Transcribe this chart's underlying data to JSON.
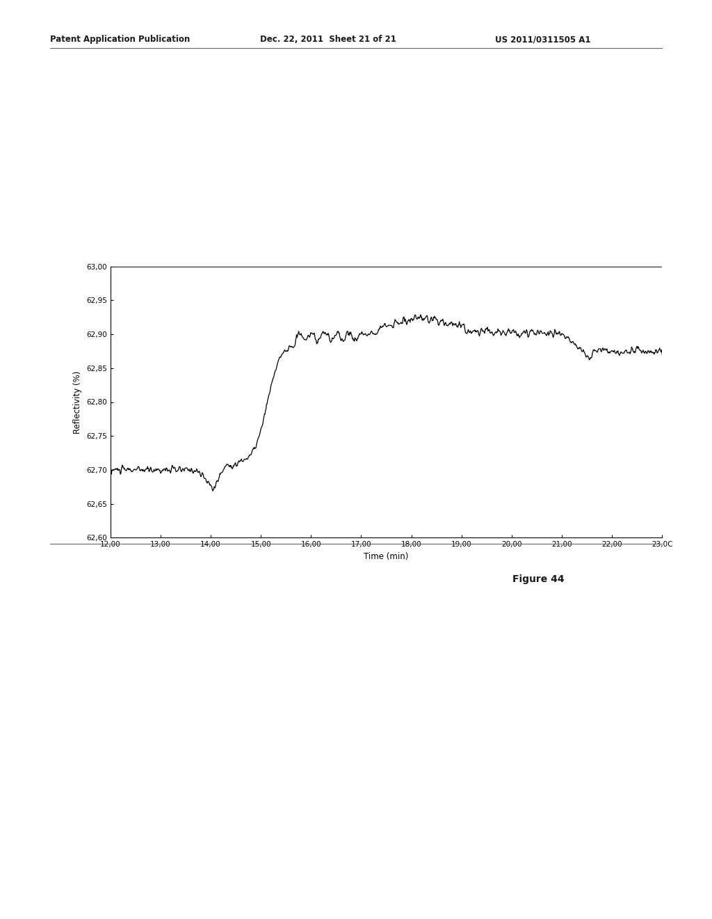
{
  "header_left": "Patent Application Publication",
  "header_center": "Dec. 22, 2011  Sheet 21 of 21",
  "header_right": "US 2011/0311505 A1",
  "figure_label": "Figure 44",
  "xlabel": "Time (min)",
  "ylabel": "Reflectivity (%)",
  "xlim": [
    12.0,
    23.0
  ],
  "ylim": [
    62.6,
    63.0
  ],
  "xticks": [
    12.0,
    13.0,
    14.0,
    15.0,
    16.0,
    17.0,
    18.0,
    19.0,
    20.0,
    21.0,
    22.0,
    23.0
  ],
  "yticks": [
    62.6,
    62.65,
    62.7,
    62.75,
    62.8,
    62.85,
    62.9,
    62.95,
    63.0
  ],
  "xtick_labels": [
    "12,00",
    "13,00",
    "14,00",
    "15,00",
    "16,00",
    "17,00",
    "18,00",
    "19,00",
    "20,00",
    "21,00",
    "22,00",
    "23,0C"
  ],
  "ytick_labels": [
    "62,60",
    "62,65",
    "62,70",
    "62,75",
    "62,80",
    "62,85",
    "62,90",
    "62,95",
    "63,00"
  ],
  "line_color": "#000000",
  "background_color": "#ffffff",
  "top_line_y": 63.0
}
